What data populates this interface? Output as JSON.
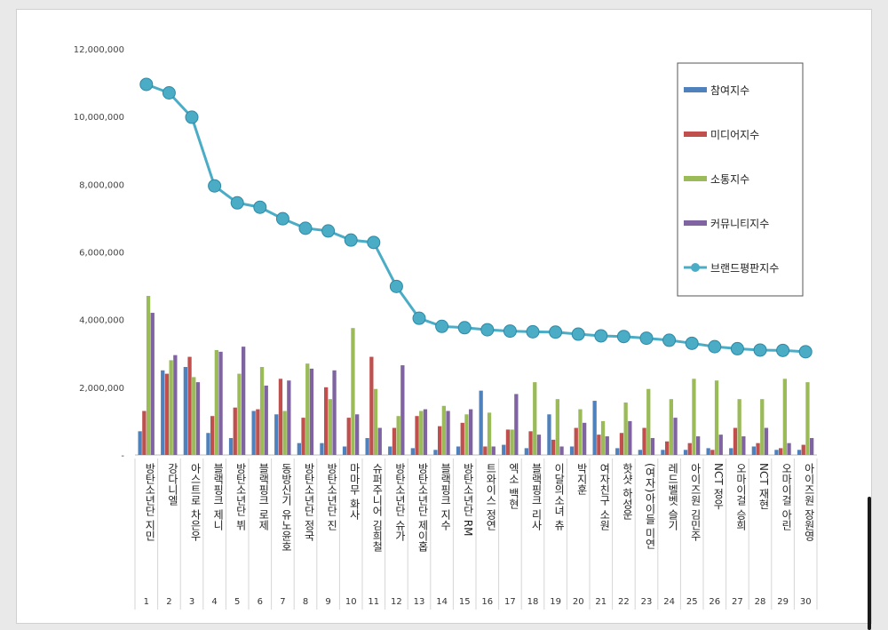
{
  "chart_data": {
    "type": "bar",
    "title": "",
    "ylim": [
      0,
      12000000
    ],
    "yticks": [
      "-",
      "2,000,000",
      "4,000,000",
      "6,000,000",
      "8,000,000",
      "10,000,000",
      "12,000,000"
    ],
    "grid": false,
    "legend_position": "top-right",
    "categories": [
      "방탄소년단 지민",
      "강다니엘",
      "아스트로 차은우",
      "블랙핑크 제니",
      "방탄소년단 뷔",
      "블랙핑크 로제",
      "동방신기 유노윤호",
      "방탄소년단 정국",
      "방탄소년단 진",
      "마마무 화사",
      "슈퍼주니어 김희철",
      "방탄소년단 슈가",
      "방탄소년단 제이홉",
      "블랙핑크 지수",
      "방탄소년단 RM",
      "트와이스 정연",
      "엑소 백현",
      "블랙핑크 리사",
      "이달의소녀 츄",
      "박지훈",
      "여자친구 소원",
      "핫샷 하성운",
      "(여자)아이들 미연",
      "레드벨벳 슬기",
      "아이즈원 김민주",
      "NCT 정우",
      "오마이걸 승희",
      "NCT 재현",
      "오마이걸 아린",
      "아이즈원 장원영"
    ],
    "ranks": [
      "1",
      "2",
      "3",
      "4",
      "5",
      "6",
      "7",
      "8",
      "9",
      "10",
      "11",
      "12",
      "13",
      "14",
      "15",
      "16",
      "17",
      "18",
      "19",
      "20",
      "21",
      "22",
      "23",
      "24",
      "25",
      "26",
      "27",
      "28",
      "29",
      "30"
    ],
    "series": [
      {
        "name": "참여지수",
        "kind": "bar",
        "color": "#4f81bd",
        "values": [
          700000,
          2500000,
          2600000,
          650000,
          500000,
          1300000,
          1200000,
          350000,
          350000,
          250000,
          500000,
          250000,
          200000,
          150000,
          250000,
          1900000,
          300000,
          200000,
          1200000,
          250000,
          1600000,
          200000,
          150000,
          150000,
          150000,
          200000,
          200000,
          250000,
          150000,
          150000
        ]
      },
      {
        "name": "미디어지수",
        "kind": "bar",
        "color": "#c0504d",
        "values": [
          1300000,
          2400000,
          2900000,
          1150000,
          1400000,
          1350000,
          2250000,
          1100000,
          2000000,
          1100000,
          2900000,
          800000,
          1150000,
          850000,
          950000,
          250000,
          750000,
          700000,
          450000,
          800000,
          600000,
          650000,
          800000,
          400000,
          350000,
          150000,
          800000,
          350000,
          200000,
          300000
        ]
      },
      {
        "name": "소통지수",
        "kind": "bar",
        "color": "#9bbb59",
        "values": [
          4700000,
          2800000,
          2300000,
          3100000,
          2400000,
          2600000,
          1300000,
          2700000,
          1650000,
          3750000,
          1950000,
          1150000,
          1300000,
          1450000,
          1200000,
          1250000,
          750000,
          2150000,
          1650000,
          1350000,
          1000000,
          1550000,
          1950000,
          1650000,
          2250000,
          2200000,
          1650000,
          1650000,
          2250000,
          2150000
        ]
      },
      {
        "name": "커뮤니티지수",
        "kind": "bar",
        "color": "#8064a2",
        "values": [
          4200000,
          2950000,
          2150000,
          3050000,
          3200000,
          2050000,
          2200000,
          2550000,
          2500000,
          1200000,
          800000,
          2650000,
          1350000,
          1300000,
          1350000,
          250000,
          1800000,
          600000,
          250000,
          950000,
          550000,
          1000000,
          500000,
          1100000,
          550000,
          600000,
          550000,
          800000,
          350000,
          500000
        ]
      },
      {
        "name": "브랜드평판지수",
        "kind": "line",
        "color": "#4bacc6",
        "values": [
          10950000,
          10700000,
          9980000,
          7950000,
          7450000,
          7320000,
          6980000,
          6700000,
          6620000,
          6350000,
          6280000,
          4980000,
          4040000,
          3800000,
          3760000,
          3700000,
          3660000,
          3640000,
          3630000,
          3570000,
          3520000,
          3500000,
          3450000,
          3390000,
          3300000,
          3200000,
          3140000,
          3100000,
          3090000,
          3050000
        ]
      }
    ]
  }
}
